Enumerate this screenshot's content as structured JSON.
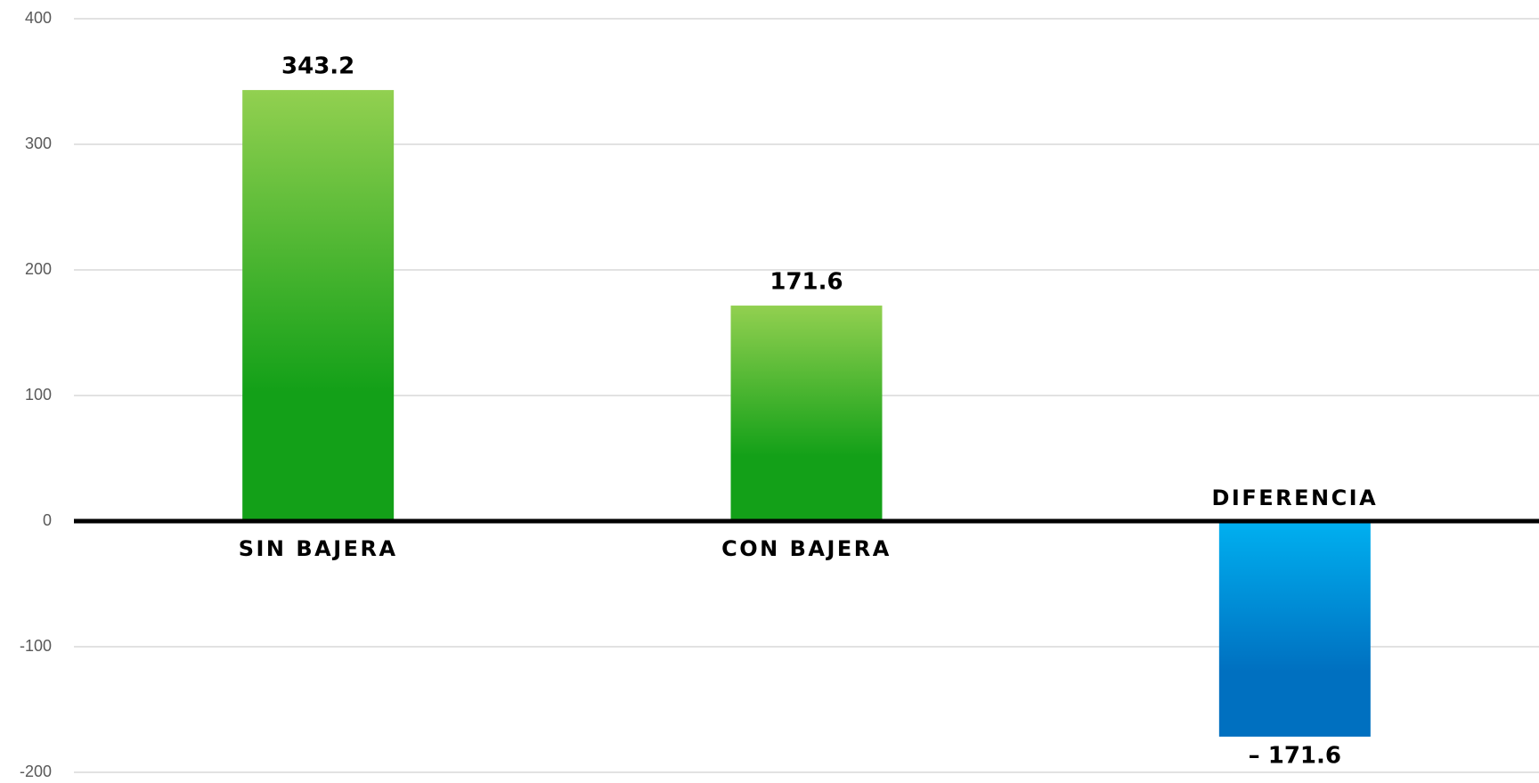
{
  "chart_data": {
    "type": "bar",
    "categories": [
      "SIN BAJERA",
      "CON BAJERA",
      "DIFERENCIA"
    ],
    "values": [
      343.2,
      171.6,
      -171.6
    ],
    "value_labels": [
      "343.2",
      "171.6",
      "– 171.6"
    ],
    "colors": [
      [
        "#92d050",
        "#13a018"
      ],
      [
        "#92d050",
        "#13a018"
      ],
      [
        "#00b0f0",
        "#0070c0"
      ]
    ],
    "ylim": [
      -200,
      400
    ],
    "yticks": [
      -200,
      -100,
      0,
      100,
      200,
      300,
      400
    ],
    "grid": true
  }
}
